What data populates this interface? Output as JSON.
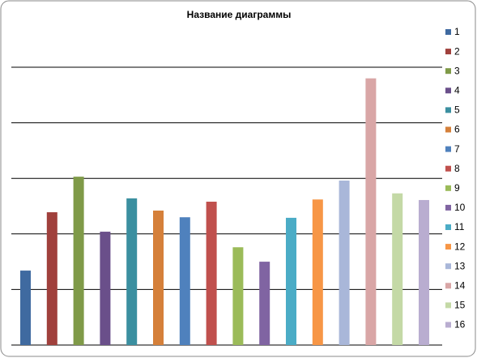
{
  "chart_data": {
    "type": "bar",
    "title": "Название диаграммы",
    "categories": [
      null
    ],
    "series": [
      {
        "name": "1",
        "color": "#3f6aa0",
        "values": [
          1.34
        ]
      },
      {
        "name": "2",
        "color": "#a0403c",
        "values": [
          2.39
        ]
      },
      {
        "name": "3",
        "color": "#7f9a48",
        "values": [
          3.03
        ]
      },
      {
        "name": "4",
        "color": "#6a4f8a",
        "values": [
          2.04
        ]
      },
      {
        "name": "5",
        "color": "#3b8fa0",
        "values": [
          2.64
        ]
      },
      {
        "name": "6",
        "color": "#d5803a",
        "values": [
          2.42
        ]
      },
      {
        "name": "7",
        "color": "#4f81bd",
        "values": [
          2.3
        ]
      },
      {
        "name": "8",
        "color": "#c0504d",
        "values": [
          2.58
        ]
      },
      {
        "name": "9",
        "color": "#9bbb59",
        "values": [
          1.76
        ]
      },
      {
        "name": "10",
        "color": "#8064a2",
        "values": [
          1.5
        ]
      },
      {
        "name": "11",
        "color": "#4bacc6",
        "values": [
          2.29
        ]
      },
      {
        "name": "12",
        "color": "#f79646",
        "values": [
          2.62
        ]
      },
      {
        "name": "13",
        "color": "#a9b7d9",
        "values": [
          2.96
        ]
      },
      {
        "name": "14",
        "color": "#d9a6a6",
        "values": [
          4.8
        ]
      },
      {
        "name": "15",
        "color": "#c4d9a6",
        "values": [
          2.73
        ]
      },
      {
        "name": "16",
        "color": "#b9add0",
        "values": [
          2.61
        ]
      }
    ],
    "ylim": [
      0,
      6
    ],
    "yticks": [
      0,
      1,
      2,
      3,
      4,
      5
    ],
    "grid": true,
    "legend": "right"
  }
}
